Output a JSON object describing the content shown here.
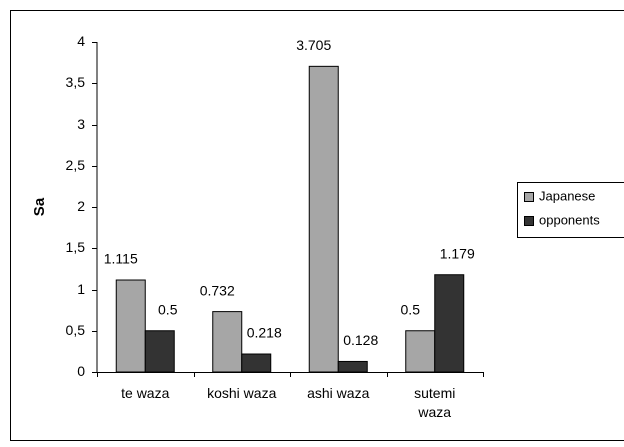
{
  "chart_data": {
    "type": "bar",
    "y_label": "Sa",
    "categories": [
      "te waza",
      "koshi waza",
      "ashi waza",
      "sutemi waza"
    ],
    "series": [
      {
        "name": "Japanese",
        "color": "#a6a6a6",
        "values": [
          1.115,
          0.732,
          3.705,
          0.5
        ]
      },
      {
        "name": "opponents",
        "color": "#333333",
        "values": [
          0.5,
          0.218,
          0.128,
          1.179
        ]
      }
    ],
    "ylim": [
      0,
      4
    ],
    "yticks": [
      0,
      {
        "value": 0.5,
        "label": "0,5"
      },
      1,
      {
        "value": 1.5,
        "label": "1,5"
      },
      2,
      {
        "value": 2.5,
        "label": "2,5"
      },
      3,
      {
        "value": 3.5,
        "label": "3,5"
      },
      4
    ],
    "legend": "right"
  }
}
